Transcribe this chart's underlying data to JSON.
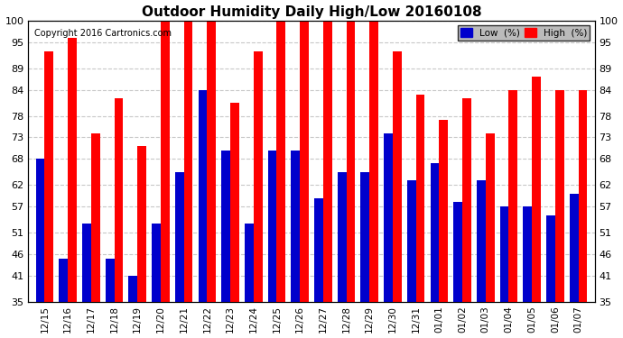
{
  "title": "Outdoor Humidity Daily High/Low 20160108",
  "copyright": "Copyright 2016 Cartronics.com",
  "categories": [
    "12/15",
    "12/16",
    "12/17",
    "12/18",
    "12/19",
    "12/20",
    "12/21",
    "12/22",
    "12/23",
    "12/24",
    "12/25",
    "12/26",
    "12/27",
    "12/28",
    "12/29",
    "12/30",
    "12/31",
    "01/01",
    "01/02",
    "01/03",
    "01/04",
    "01/05",
    "01/06",
    "01/07"
  ],
  "high_values": [
    93,
    96,
    74,
    82,
    71,
    100,
    100,
    100,
    81,
    93,
    100,
    100,
    100,
    100,
    100,
    93,
    83,
    77,
    82,
    74,
    84,
    87,
    84,
    84
  ],
  "low_values": [
    68,
    45,
    53,
    45,
    41,
    53,
    65,
    84,
    70,
    53,
    70,
    70,
    59,
    65,
    65,
    74,
    63,
    67,
    58,
    63,
    57,
    57,
    55,
    60
  ],
  "high_color": "#ff0000",
  "low_color": "#0000cc",
  "bg_color": "#ffffff",
  "plot_bg_color": "#ffffff",
  "grid_color": "#c8c8c8",
  "ylim": [
    35,
    100
  ],
  "yticks": [
    35,
    41,
    46,
    51,
    57,
    62,
    68,
    73,
    78,
    84,
    89,
    95,
    100
  ],
  "legend_low_label": "Low  (%)",
  "legend_high_label": "High  (%)",
  "bar_width": 0.38
}
